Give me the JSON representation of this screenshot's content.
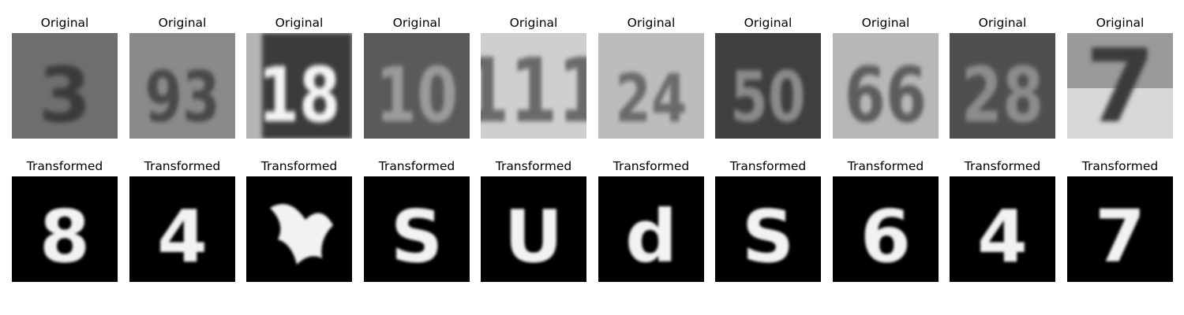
{
  "figure": {
    "row_titles": {
      "top": "Original",
      "bottom": "Transformed"
    },
    "original_digits": [
      "3",
      "93",
      "18",
      "10",
      "111",
      "24",
      "50",
      "66",
      "28",
      "7"
    ],
    "transformed_digits": [
      "8",
      "4",
      "",
      "S",
      "U",
      "d",
      "S",
      "6",
      "4",
      "7"
    ]
  }
}
